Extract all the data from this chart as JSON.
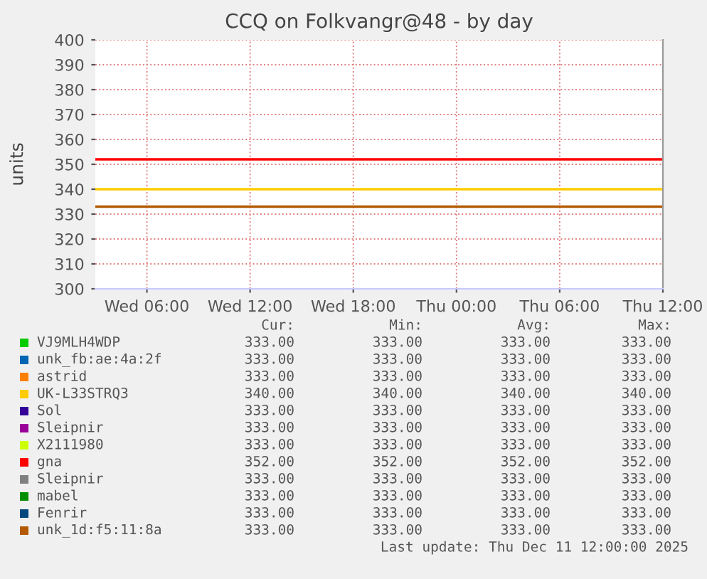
{
  "chart_data": {
    "type": "line",
    "title": "CCQ on Folkvangr@48 - by day",
    "ylabel": "units",
    "x": [
      "2025-12-10T03:00",
      "2025-12-11T12:00"
    ],
    "series": [
      {
        "name": "VJ9MLH4WDP",
        "color": "#00cc00",
        "values": [
          null,
          null
        ]
      },
      {
        "name": "unk_fb:ae:4a:2f",
        "color": "#0066b3",
        "values": [
          null,
          null
        ]
      },
      {
        "name": "astrid",
        "color": "#ff8000",
        "values": [
          null,
          null
        ]
      },
      {
        "name": "UK-L33STRQ3",
        "color": "#ffcc00",
        "values": [
          340,
          340
        ]
      },
      {
        "name": "Sol",
        "color": "#330099",
        "values": [
          null,
          null
        ]
      },
      {
        "name": "Sleipnir",
        "color": "#990099",
        "values": [
          null,
          null
        ]
      },
      {
        "name": "X2111980",
        "color": "#ccff00",
        "values": [
          null,
          null
        ]
      },
      {
        "name": "gna",
        "color": "#ff0000",
        "values": [
          352,
          352
        ]
      },
      {
        "name": "Sleipnir",
        "color": "#808080",
        "values": [
          null,
          null
        ]
      },
      {
        "name": "mabel",
        "color": "#008f00",
        "values": [
          null,
          null
        ]
      },
      {
        "name": "Fenrir",
        "color": "#00487d",
        "values": [
          null,
          null
        ]
      },
      {
        "name": "unk_1d:f5:11:8a",
        "color": "#b35a00",
        "values": [
          333,
          333
        ]
      }
    ],
    "xlim": [
      "2025-12-10T03:00",
      "2025-12-11T12:00"
    ],
    "xticks": [
      {
        "value": "2025-12-10T06:00",
        "label": "Wed 06:00"
      },
      {
        "value": "2025-12-10T12:00",
        "label": "Wed 12:00"
      },
      {
        "value": "2025-12-10T18:00",
        "label": "Wed 18:00"
      },
      {
        "value": "2025-12-11T00:00",
        "label": "Thu 00:00"
      },
      {
        "value": "2025-12-11T06:00",
        "label": "Thu 06:00"
      },
      {
        "value": "2025-12-11T12:00",
        "label": "Thu 12:00"
      }
    ],
    "ylim": [
      300,
      400
    ],
    "yticks": [
      300,
      310,
      320,
      330,
      340,
      350,
      360,
      370,
      380,
      390,
      400
    ],
    "grid": true,
    "legend": "bottom",
    "marker": "none",
    "line_style": "solid",
    "annotations": [
      "Cur:",
      "Min:",
      "Avg:",
      "Max:",
      "333.00",
      "333.00",
      "333.00",
      "333.00",
      "333.00",
      "333.00",
      "333.00",
      "333.00",
      "333.00",
      "333.00",
      "333.00",
      "333.00",
      "340.00",
      "340.00",
      "340.00",
      "340.00",
      "333.00",
      "333.00",
      "333.00",
      "333.00",
      "333.00",
      "333.00",
      "333.00",
      "333.00",
      "333.00",
      "333.00",
      "333.00",
      "333.00",
      "352.00",
      "352.00",
      "352.00",
      "352.00",
      "333.00",
      "333.00",
      "333.00",
      "333.00",
      "333.00",
      "333.00",
      "333.00",
      "333.00",
      "333.00",
      "333.00",
      "333.00",
      "333.00",
      "333.00",
      "333.00",
      "333.00",
      "333.00",
      "Last update: Thu Dec 11 12:00:00 2025"
    ]
  }
}
